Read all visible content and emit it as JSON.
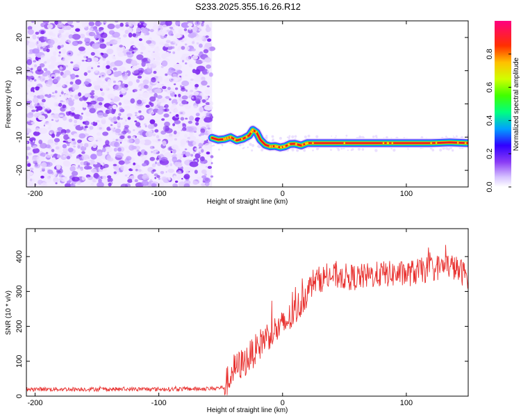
{
  "title": "S233.2025.355.16.26.R12",
  "colorbar": {
    "label": "Normalized spectral amplitude",
    "ticks": [
      "0.0",
      "0.2",
      "0.4",
      "0.6",
      "0.8"
    ],
    "tick_values": [
      0.0,
      0.2,
      0.4,
      0.6,
      0.8
    ]
  },
  "chart_data": [
    {
      "type": "heatmap",
      "name": "spectrogram",
      "xlabel": "Height of straight line (km)",
      "ylabel": "Frequency (Hz)",
      "xlim": [
        -207,
        150
      ],
      "ylim": [
        -25,
        25
      ],
      "x_ticks": [
        -200,
        -100,
        0,
        100
      ],
      "x_tick_labels": [
        "-200",
        "-100",
        "0",
        "100"
      ],
      "y_ticks": [
        -20,
        -10,
        0,
        10,
        20
      ],
      "y_tick_labels": [
        "-20",
        "-10",
        "0",
        "10",
        "20"
      ],
      "noise_region_x": [
        -207,
        -57
      ],
      "line_trace": {
        "x": [
          -57,
          -52,
          -47,
          -42,
          -37,
          -32,
          -27,
          -24,
          -21,
          -18,
          -14,
          -10,
          -6,
          -2,
          2,
          6,
          10,
          15,
          20,
          25,
          40,
          60,
          80,
          100,
          120,
          135,
          150
        ],
        "y": [
          -10.2,
          -10.8,
          -10.6,
          -10.0,
          -11.0,
          -10.5,
          -9.5,
          -7.8,
          -8.6,
          -10.8,
          -12.3,
          -12.8,
          -12.7,
          -13.1,
          -12.8,
          -12.1,
          -12.0,
          -12.5,
          -11.8,
          -11.8,
          -11.8,
          -11.8,
          -11.8,
          -11.8,
          -11.8,
          -11.6,
          -11.8
        ]
      }
    },
    {
      "type": "line",
      "name": "snr",
      "xlabel": "Height of straight line (km)",
      "ylabel": "SNR (10 * v/v)",
      "xlim": [
        -207,
        150
      ],
      "ylim": [
        0,
        480
      ],
      "x_ticks": [
        -200,
        -100,
        0,
        100
      ],
      "x_tick_labels": [
        "-200",
        "-100",
        "0",
        "100"
      ],
      "y_ticks": [
        0,
        100,
        200,
        300,
        400
      ],
      "y_tick_labels": [
        "0",
        "100",
        "200",
        "300",
        "400"
      ],
      "color": "#e8302e",
      "trend": {
        "x": [
          -207,
          -150,
          -100,
          -60,
          -47,
          -40,
          -30,
          -20,
          -15,
          -10,
          0,
          10,
          20,
          25,
          40,
          60,
          80,
          100,
          120,
          135,
          150
        ],
        "y": [
          20,
          20,
          20,
          21,
          25,
          75,
          100,
          140,
          165,
          180,
          200,
          240,
          300,
          330,
          345,
          340,
          350,
          350,
          365,
          375,
          345
        ]
      }
    }
  ]
}
